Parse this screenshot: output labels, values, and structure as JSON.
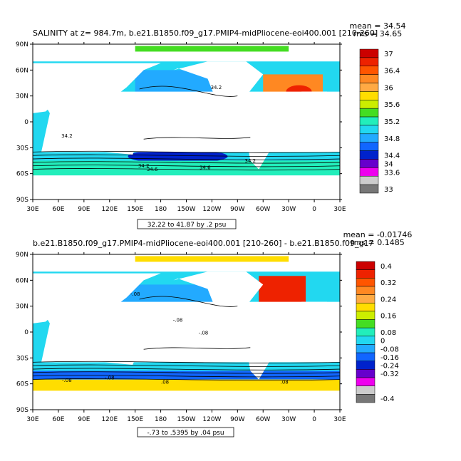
{
  "chart_data": [
    {
      "type": "heatmap",
      "title": "SALINITY at z= 984.7m, b.e21.B1850.f09_g17.PMIP4-midPliocene-eoi400.001 [210-260]",
      "stats": {
        "mean": "mean = 34.54",
        "rms": "rms = 34.65"
      },
      "contour_info": "32.22 to 41.87 by .2 psu",
      "xticks": [
        "30E",
        "60E",
        "90E",
        "120E",
        "150E",
        "180",
        "150W",
        "120W",
        "90W",
        "60W",
        "30W",
        "0",
        "30E"
      ],
      "yticks": [
        "90N",
        "60N",
        "30N",
        "0",
        "30S",
        "60S",
        "90S"
      ],
      "colorbar": {
        "labels": [
          "37",
          "36.4",
          "36",
          "35.6",
          "35.2",
          "34.8",
          "34.4",
          "34",
          "33.6",
          "33"
        ],
        "colors": [
          "#cc0000",
          "#ee2200",
          "#ff5500",
          "#ff8822",
          "#ffaa44",
          "#ffdd00",
          "#ccee00",
          "#44dd22",
          "#22eebb",
          "#22d8f0",
          "#22aaff",
          "#1166ff",
          "#0022cc",
          "#6600cc",
          "#ee00ee",
          "#cccccc",
          "#777777"
        ]
      },
      "contour_labels": [
        "34.2",
        "34.2",
        "34.2",
        "34.6",
        "34.2",
        "34.6"
      ]
    },
    {
      "type": "heatmap",
      "title": "b.e21.B1850.f09_g17.PMIP4-midPliocene-eoi400.001 [210-260] - b.e21.B1850.f09_g17",
      "stats": {
        "mean": "mean = -0.01746",
        "rms": "rms = 0.1485"
      },
      "contour_info": "-.73 to .5395 by .04 psu",
      "xticks": [
        "30E",
        "60E",
        "90E",
        "120E",
        "150E",
        "180",
        "150W",
        "120W",
        "90W",
        "60W",
        "30W",
        "0",
        "30E"
      ],
      "yticks": [
        "90N",
        "60N",
        "30N",
        "0",
        "30S",
        "60S",
        "90S"
      ],
      "colorbar": {
        "labels": [
          "0.4",
          "0.32",
          "0.24",
          "0.16",
          "0.08",
          "0",
          "-0.08",
          "-0.16",
          "-0.24",
          "-0.32",
          "-0.4"
        ],
        "colors": [
          "#cc0000",
          "#ee2200",
          "#ff5500",
          "#ff8822",
          "#ffaa44",
          "#ffdd00",
          "#ccee00",
          "#44dd22",
          "#22eebb",
          "#22d8f0",
          "#22aaff",
          "#1166ff",
          "#0022cc",
          "#6600cc",
          "#ee00ee",
          "#cccccc",
          "#777777"
        ]
      },
      "contour_labels": [
        "-.08",
        "-.08",
        "-.08",
        "-.08",
        "-.08",
        ".08",
        ".08"
      ]
    }
  ]
}
